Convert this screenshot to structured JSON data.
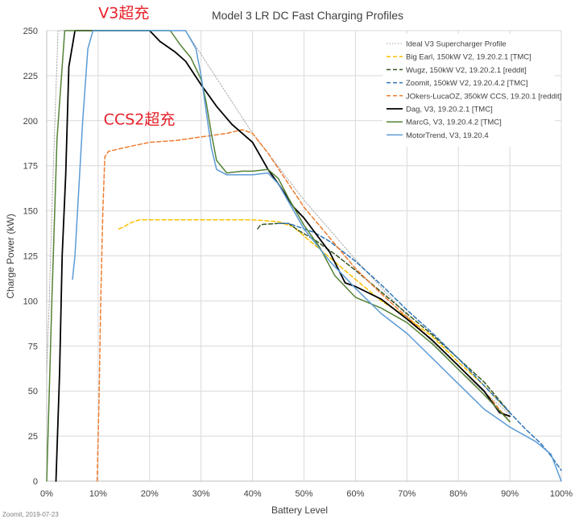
{
  "chart_data": {
    "type": "line",
    "title": "Model 3 LR DC Fast Charging Profiles",
    "xlabel": "Battery Level",
    "ylabel": "Charge Power (kW)",
    "xlim": [
      0,
      100
    ],
    "ylim": [
      0,
      250
    ],
    "x_ticks": [
      "0%",
      "10%",
      "20%",
      "30%",
      "40%",
      "50%",
      "60%",
      "70%",
      "80%",
      "90%",
      "100%"
    ],
    "y_ticks": [
      "0",
      "25",
      "50",
      "75",
      "100",
      "125",
      "150",
      "175",
      "200",
      "225",
      "250"
    ],
    "grid": true,
    "legend_position": "top-right",
    "annotations": [
      {
        "text": "V3超充",
        "x": 15,
        "y": 257,
        "color": "#e8202a"
      },
      {
        "text": "CCS2超充",
        "x": 18,
        "y": 198,
        "color": "#e8202a"
      }
    ],
    "footer": "Zoomit, 2019-07-23",
    "series": [
      {
        "name": "Ideal V3 Supercharger Profile",
        "color": "#a6a6a6",
        "style": "dotted",
        "points": [
          [
            0,
            60
          ],
          [
            0.5,
            100
          ],
          [
            1,
            150
          ],
          [
            1.6,
            200
          ],
          [
            2.2,
            250
          ],
          [
            27,
            250
          ],
          [
            40,
            193
          ],
          [
            50,
            156
          ],
          [
            60,
            123
          ],
          [
            70,
            92
          ],
          [
            80,
            62
          ],
          [
            90,
            37
          ]
        ]
      },
      {
        "name": "Big Earl, 150kW V2, 19.20.2.1 [TMC]",
        "color": "#ffc000",
        "style": "dashed",
        "points": [
          [
            14,
            140
          ],
          [
            15,
            141
          ],
          [
            16,
            143
          ],
          [
            17,
            144
          ],
          [
            18,
            145
          ],
          [
            20,
            145
          ],
          [
            30,
            145
          ],
          [
            40,
            145
          ],
          [
            45,
            144
          ],
          [
            48,
            141
          ],
          [
            50,
            136
          ],
          [
            55,
            124
          ],
          [
            60,
            112
          ],
          [
            65,
            100
          ],
          [
            70,
            91
          ],
          [
            75,
            80
          ],
          [
            80,
            66
          ],
          [
            85,
            53
          ],
          [
            90,
            38
          ]
        ]
      },
      {
        "name": "Wugz, 150kW V2, 19.20.2.1 [reddit]",
        "color": "#375623",
        "style": "dashed",
        "points": [
          [
            41,
            140
          ],
          [
            41.5,
            142
          ],
          [
            42,
            142.5
          ],
          [
            45,
            143
          ],
          [
            47,
            143
          ],
          [
            49,
            139
          ],
          [
            52,
            134
          ],
          [
            56,
            126
          ],
          [
            60,
            117
          ],
          [
            65,
            105
          ],
          [
            70,
            93
          ],
          [
            75,
            81
          ],
          [
            80,
            68
          ],
          [
            85,
            55
          ],
          [
            90,
            38
          ]
        ]
      },
      {
        "name": "Zoomit, 150kW V2, 19.20.4.2 [TMC]",
        "color": "#2e75b6",
        "style": "dashed",
        "points": [
          [
            45,
            143
          ],
          [
            47,
            143
          ],
          [
            49,
            141
          ],
          [
            52,
            138
          ],
          [
            55,
            133
          ],
          [
            60,
            122
          ],
          [
            65,
            109
          ],
          [
            70,
            95
          ],
          [
            75,
            82
          ],
          [
            80,
            68
          ],
          [
            85,
            53
          ],
          [
            90,
            38
          ],
          [
            93,
            29
          ],
          [
            96,
            21
          ],
          [
            98,
            14
          ],
          [
            100,
            6
          ]
        ]
      },
      {
        "name": "JOkers-LucaOZ, 350kW CCS, 19.20.1 [reddit]",
        "color": "#ed7d31",
        "style": "dashed",
        "points": [
          [
            9.8,
            0
          ],
          [
            10.2,
            50
          ],
          [
            10.5,
            100
          ],
          [
            10.9,
            150
          ],
          [
            11.3,
            180
          ],
          [
            12,
            183
          ],
          [
            15,
            185
          ],
          [
            20,
            188
          ],
          [
            25,
            189
          ],
          [
            30,
            191
          ],
          [
            35,
            193
          ],
          [
            38,
            195
          ],
          [
            40,
            193
          ],
          [
            43,
            182
          ],
          [
            47,
            165
          ],
          [
            50,
            152
          ],
          [
            55,
            135
          ],
          [
            60,
            118
          ],
          [
            65,
            104
          ],
          [
            70,
            91
          ],
          [
            75,
            78
          ],
          [
            80,
            64
          ],
          [
            85,
            50
          ],
          [
            90,
            33
          ]
        ]
      },
      {
        "name": "Dag, V3, 19.20.2.1 [TMC]",
        "color": "#000000",
        "style": "solid",
        "points": [
          [
            1.8,
            0
          ],
          [
            2.5,
            60
          ],
          [
            3,
            125
          ],
          [
            3.7,
            170
          ],
          [
            4.3,
            230
          ],
          [
            5.5,
            250
          ],
          [
            20,
            250
          ],
          [
            22,
            244
          ],
          [
            25,
            238
          ],
          [
            27,
            233
          ],
          [
            30,
            220
          ],
          [
            33,
            208
          ],
          [
            36,
            198
          ],
          [
            40,
            188
          ],
          [
            43,
            173
          ],
          [
            45,
            165
          ],
          [
            48,
            152
          ],
          [
            50,
            146
          ],
          [
            55,
            127
          ],
          [
            58,
            110
          ],
          [
            60,
            108
          ],
          [
            65,
            101
          ],
          [
            70,
            90
          ],
          [
            75,
            78
          ],
          [
            80,
            64
          ],
          [
            85,
            50
          ],
          [
            88,
            38
          ],
          [
            90,
            36
          ]
        ]
      },
      {
        "name": "MarcG, V3, 19.20.4.2 [TMC]",
        "color": "#548235",
        "style": "solid",
        "points": [
          [
            0,
            0
          ],
          [
            1,
            100
          ],
          [
            2,
            190
          ],
          [
            3.5,
            250
          ],
          [
            24,
            250
          ],
          [
            26,
            242
          ],
          [
            28,
            235
          ],
          [
            30,
            223
          ],
          [
            31,
            210
          ],
          [
            32,
            193
          ],
          [
            33,
            178
          ],
          [
            35,
            171
          ],
          [
            38,
            172
          ],
          [
            40,
            172
          ],
          [
            43,
            173
          ],
          [
            45,
            168
          ],
          [
            47,
            157
          ],
          [
            50,
            142
          ],
          [
            53,
            130
          ],
          [
            56,
            114
          ],
          [
            60,
            102
          ],
          [
            65,
            96
          ],
          [
            70,
            88
          ],
          [
            75,
            76
          ],
          [
            80,
            62
          ],
          [
            85,
            48
          ],
          [
            90,
            33
          ]
        ]
      },
      {
        "name": "MotorTrend, V3, 19.20.4",
        "color": "#5b9bd5",
        "style": "solid",
        "points": [
          [
            5,
            112
          ],
          [
            5.5,
            125
          ],
          [
            6,
            150
          ],
          [
            7,
            200
          ],
          [
            8,
            240
          ],
          [
            9,
            250
          ],
          [
            27,
            250
          ],
          [
            29,
            240
          ],
          [
            30,
            225
          ],
          [
            31,
            205
          ],
          [
            32,
            185
          ],
          [
            33,
            173
          ],
          [
            35,
            170
          ],
          [
            40,
            170
          ],
          [
            43,
            171
          ],
          [
            45,
            165
          ],
          [
            50,
            140
          ],
          [
            55,
            122
          ],
          [
            60,
            107
          ],
          [
            65,
            93
          ],
          [
            70,
            82
          ],
          [
            75,
            68
          ],
          [
            80,
            54
          ],
          [
            85,
            40
          ],
          [
            90,
            30
          ],
          [
            95,
            22
          ],
          [
            98,
            15
          ],
          [
            100,
            0
          ]
        ]
      }
    ]
  }
}
